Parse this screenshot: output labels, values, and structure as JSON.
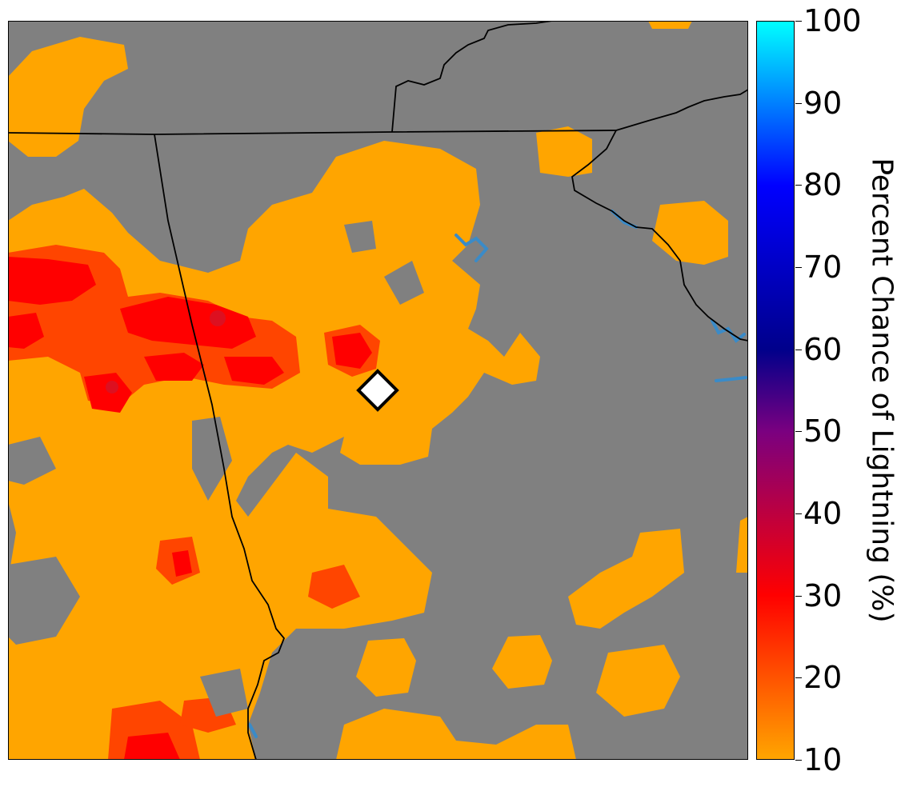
{
  "colorbar": {
    "label": "Percent Chance of Lightning (%)",
    "min": 10,
    "max": 100,
    "ticks": [
      "10",
      "20",
      "30",
      "40",
      "50",
      "60",
      "70",
      "80",
      "90",
      "100"
    ],
    "stops": [
      {
        "value": 10,
        "color": "#ffa500"
      },
      {
        "value": 30,
        "color": "#ff0000"
      },
      {
        "value": 50,
        "color": "#7a0080"
      },
      {
        "value": 60,
        "color": "#00008b"
      },
      {
        "value": 80,
        "color": "#0000ff"
      },
      {
        "value": 100,
        "color": "#00ffff"
      }
    ]
  },
  "map": {
    "background_color": "#808080",
    "low_color": "#ffa500",
    "mid_color": "#ff4500",
    "high_color": "#ff0000",
    "peak_color": "#dd1020",
    "water_color": "#3a8bc8",
    "border_color": "#000000",
    "marker": {
      "shape": "diamond",
      "fill": "#ffffff",
      "stroke": "#000000"
    }
  }
}
